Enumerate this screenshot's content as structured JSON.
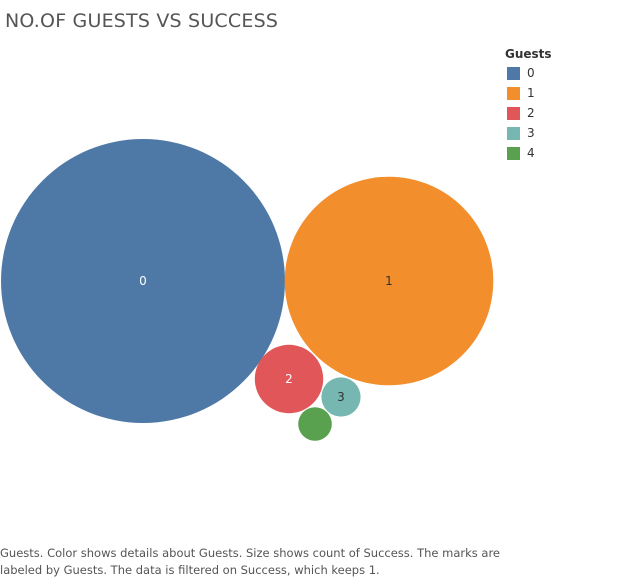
{
  "chart_data": {
    "type": "bubble",
    "title": "NO.OF GUESTS VS SUCCESS",
    "legend": {
      "title": "Guests",
      "placement": "top-right",
      "items": [
        {
          "label": "0",
          "color": "#4e79a7"
        },
        {
          "label": "1",
          "color": "#f28e2b"
        },
        {
          "label": "2",
          "color": "#e15759"
        },
        {
          "label": "3",
          "color": "#76b7b2"
        },
        {
          "label": "4",
          "color": "#59a14f"
        }
      ]
    },
    "categories": [
      "0",
      "1",
      "2",
      "3",
      "4"
    ],
    "values": [
      1000,
      540,
      58,
      19,
      14
    ],
    "labels": [
      "0",
      "1",
      "2",
      "3",
      ""
    ],
    "label_colors": [
      "#ffffff",
      "#333333",
      "#ffffff",
      "#333333",
      "#333333"
    ],
    "size_measure": "count of Success"
  },
  "caption": {
    "line1": "Guests.  Color shows details about Guests.  Size shows count of Success.  The marks are",
    "line2": "labeled by Guests. The data is filtered on Success, which keeps 1."
  }
}
